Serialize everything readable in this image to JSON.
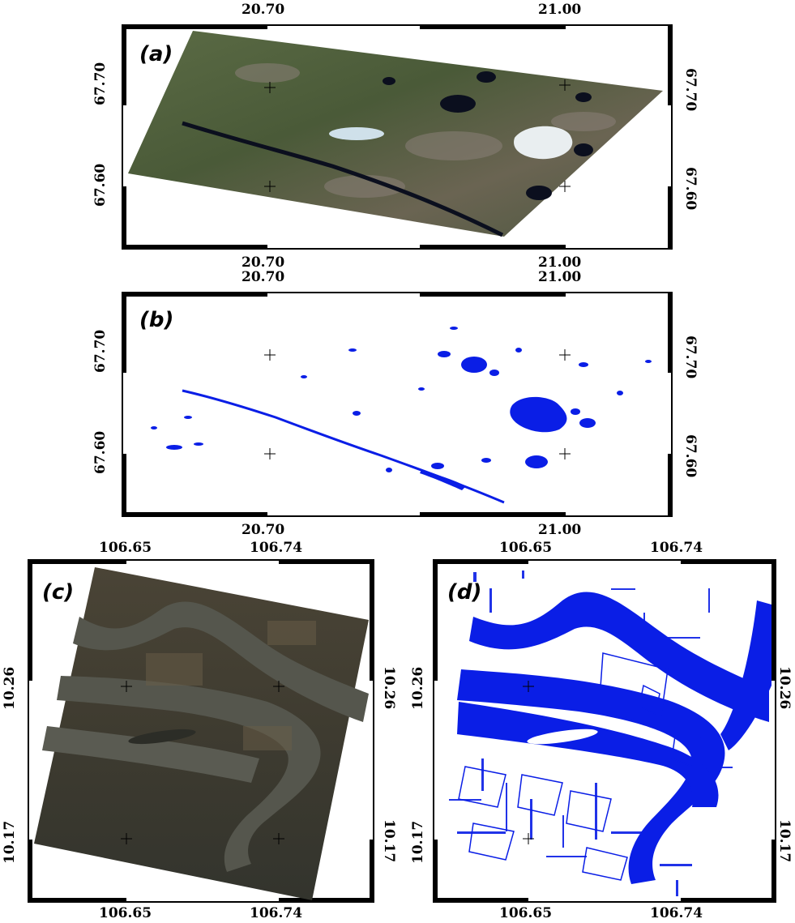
{
  "panels": [
    {
      "id": "a",
      "label": "(a)",
      "x_ticks": [
        "20.70",
        "21.00"
      ],
      "y_ticks": [
        "67.70",
        "67.60"
      ],
      "content": "satellite-rgb",
      "colors": {
        "land": "#4d5a3c",
        "water": "#0b0f1e",
        "ice": "#e9eef0"
      }
    },
    {
      "id": "b",
      "label": "(b)",
      "x_ticks": [
        "20.70",
        "21.00"
      ],
      "y_ticks": [
        "67.70",
        "67.60"
      ],
      "content": "water-mask",
      "colors": {
        "water": "#0a1ee6"
      }
    },
    {
      "id": "c",
      "label": "(c)",
      "x_ticks": [
        "106.65",
        "106.74"
      ],
      "y_ticks": [
        "10.26",
        "10.17"
      ],
      "content": "satellite-rgb",
      "colors": {
        "land": "#3d3a2e",
        "water": "#55564d"
      }
    },
    {
      "id": "d",
      "label": "(d)",
      "x_ticks": [
        "106.65",
        "106.74"
      ],
      "y_ticks": [
        "10.26",
        "10.17"
      ],
      "content": "water-mask",
      "colors": {
        "water": "#0a1ee6"
      }
    }
  ]
}
